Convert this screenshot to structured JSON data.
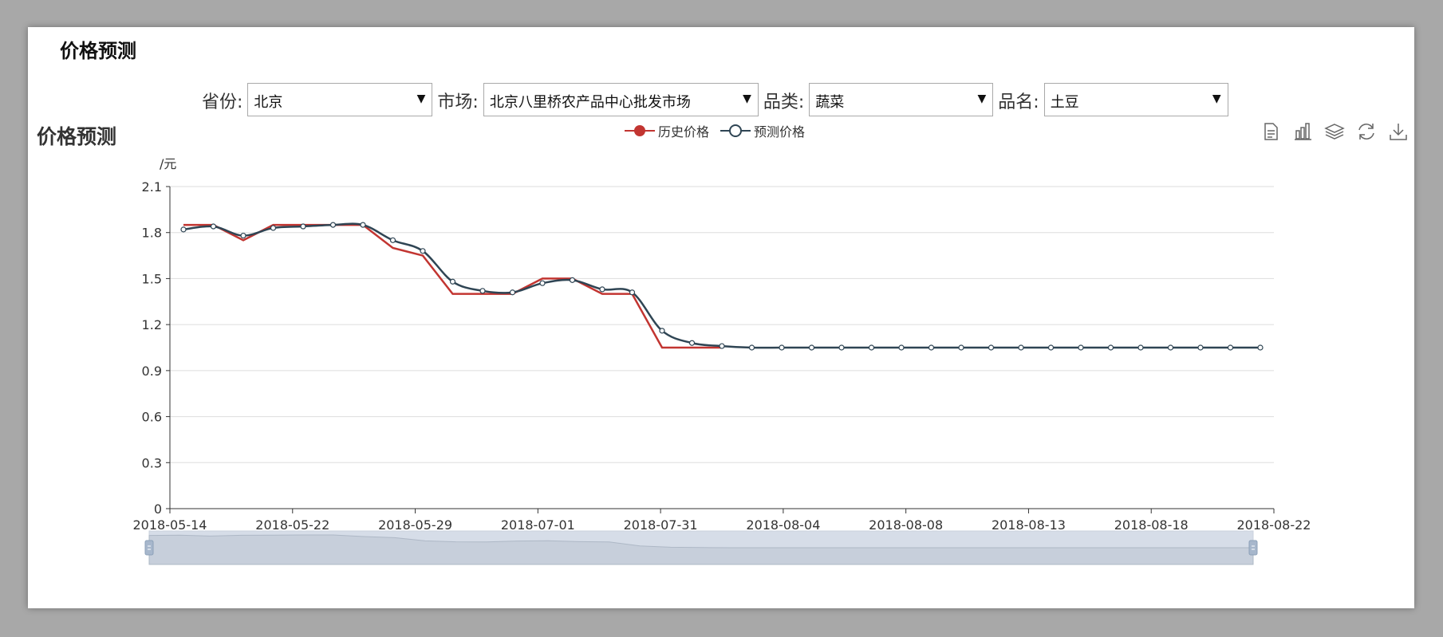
{
  "page": {
    "title": "价格预测"
  },
  "filters": {
    "province_label": "省份:",
    "province_value": "北京",
    "market_label": "市场:",
    "market_value": "北京八里桥农产品中心批发市场",
    "category_label": "品类:",
    "category_value": "蔬菜",
    "product_label": "品名:",
    "product_value": "土豆"
  },
  "toolbox": {
    "icons": [
      "data-view-icon",
      "bar-chart-icon",
      "stack-icon",
      "restore-icon",
      "download-icon"
    ]
  },
  "chart_data": {
    "type": "line",
    "title": "价格预测",
    "ylabel": "/元",
    "ylim": [
      0,
      2.1
    ],
    "yticks": [
      "0",
      "0.3",
      "0.6",
      "0.9",
      "1.2",
      "1.5",
      "1.8",
      "2.1"
    ],
    "xtick_labels": [
      "2018-05-14",
      "2018-05-22",
      "2018-05-29",
      "2018-07-01",
      "2018-07-31",
      "2018-08-04",
      "2018-08-08",
      "2018-08-13",
      "2018-08-18",
      "2018-08-22"
    ],
    "legend_position": "top-center",
    "grid": true,
    "series": [
      {
        "name": "历史价格",
        "color": "#c23531",
        "smooth": false,
        "symbol": "none",
        "values": [
          1.85,
          1.85,
          1.75,
          1.85,
          1.85,
          1.85,
          1.85,
          1.7,
          1.65,
          1.4,
          1.4,
          1.4,
          1.5,
          1.5,
          1.4,
          1.4,
          1.05,
          1.05,
          1.05
        ]
      },
      {
        "name": "预测价格",
        "color": "#2f4554",
        "smooth": true,
        "symbol": "circle",
        "values": [
          1.82,
          1.84,
          1.78,
          1.83,
          1.84,
          1.85,
          1.85,
          1.75,
          1.68,
          1.48,
          1.42,
          1.41,
          1.47,
          1.49,
          1.43,
          1.41,
          1.16,
          1.08,
          1.06,
          1.05,
          1.05,
          1.05,
          1.05,
          1.05,
          1.05,
          1.05,
          1.05,
          1.05,
          1.05,
          1.05,
          1.05,
          1.05,
          1.05,
          1.05,
          1.05,
          1.05,
          1.05
        ]
      }
    ],
    "datazoom": {
      "start_fraction": 0,
      "end_fraction": 1
    }
  }
}
